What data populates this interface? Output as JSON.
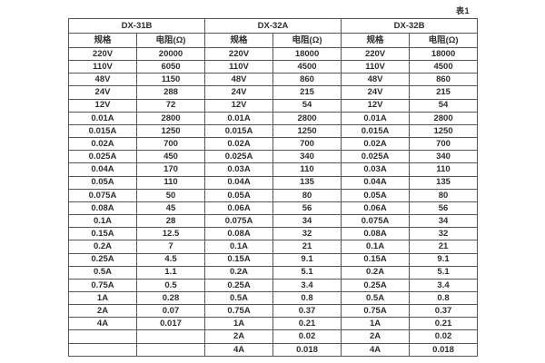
{
  "caption": "表1",
  "colors": {
    "background": "#ffffff",
    "border": "#555555",
    "text": "#2e2e2e"
  },
  "table": {
    "groups": [
      {
        "name": "DX-31B"
      },
      {
        "name": "DX-32A"
      },
      {
        "name": "DX-32B"
      }
    ],
    "column_headers": [
      "规格",
      "电阻(Ω)",
      "规格",
      "电阻(Ω)",
      "规格",
      "电阻(Ω)"
    ],
    "rows": [
      [
        "220V",
        "20000",
        "220V",
        "18000",
        "220V",
        "18000"
      ],
      [
        "110V",
        "6050",
        "110V",
        "4500",
        "110V",
        "4500"
      ],
      [
        "48V",
        "1150",
        "48V",
        "860",
        "48V",
        "860"
      ],
      [
        "24V",
        "288",
        "24V",
        "215",
        "24V",
        "215"
      ],
      [
        "12V",
        "72",
        "12V",
        "54",
        "12V",
        "54"
      ],
      [
        "0.01A",
        "2800",
        "0.01A",
        "2800",
        "0.01A",
        "2800"
      ],
      [
        "0.015A",
        "1250",
        "0.015A",
        "1250",
        "0.015A",
        "1250"
      ],
      [
        "0.02A",
        "700",
        "0.02A",
        "700",
        "0.02A",
        "700"
      ],
      [
        "0.025A",
        "450",
        "0.025A",
        "340",
        "0.025A",
        "340"
      ],
      [
        "0.04A",
        "170",
        "0.03A",
        "110",
        "0.03A",
        "110"
      ],
      [
        "0.05A",
        "110",
        "0.04A",
        "135",
        "0.04A",
        "135"
      ],
      [
        "0.075A",
        "50",
        "0.05A",
        "80",
        "0.05A",
        "80"
      ],
      [
        "0.08A",
        "45",
        "0.06A",
        "56",
        "0.06A",
        "56"
      ],
      [
        "0.1A",
        "28",
        "0.075A",
        "34",
        "0.075A",
        "34"
      ],
      [
        "0.15A",
        "12.5",
        "0.08A",
        "32",
        "0.08A",
        "32"
      ],
      [
        "0.2A",
        "7",
        "0.1A",
        "21",
        "0.1A",
        "21"
      ],
      [
        "0.25A",
        "4.5",
        "0.15A",
        "9.1",
        "0.15A",
        "9.1"
      ],
      [
        "0.5A",
        "1.1",
        "0.2A",
        "5.1",
        "0.2A",
        "5.1"
      ],
      [
        "0.75A",
        "0.5",
        "0.25A",
        "3.4",
        "0.25A",
        "3.4"
      ],
      [
        "1A",
        "0.28",
        "0.5A",
        "0.8",
        "0.5A",
        "0.8"
      ],
      [
        "2A",
        "0.07",
        "0.75A",
        "0.37",
        "0.75A",
        "0.37"
      ],
      [
        "4A",
        "0.017",
        "1A",
        "0.21",
        "1A",
        "0.21"
      ],
      [
        "",
        "",
        "2A",
        "0.02",
        "2A",
        "0.02"
      ],
      [
        "",
        "",
        "4A",
        "0.018",
        "4A",
        "0.018"
      ]
    ]
  }
}
